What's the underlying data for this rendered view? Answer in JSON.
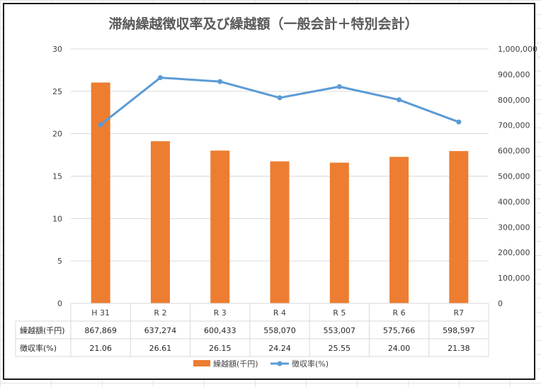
{
  "chart_data": {
    "type": "bar",
    "title": "滞納繰越徴収率及び繰越額（一般会計＋特別会計）",
    "categories": [
      "H 31",
      "R 2",
      "R 3",
      "R 4",
      "R 5",
      "R 6",
      "R7"
    ],
    "series": [
      {
        "name": "繰越額(千円)",
        "type": "bar",
        "axis": "right",
        "color": "#ED7D31",
        "values": [
          867869,
          637274,
          600433,
          558070,
          553007,
          575766,
          598597
        ],
        "labels": [
          "867,869",
          "637,274",
          "600,433",
          "558,070",
          "553,007",
          "575,766",
          "598,597"
        ]
      },
      {
        "name": "徴収率(%)",
        "type": "line",
        "axis": "left",
        "color": "#5B9BD5",
        "values": [
          21.06,
          26.61,
          26.15,
          24.24,
          25.55,
          24.0,
          21.38
        ],
        "labels": [
          "21.06",
          "26.61",
          "26.15",
          "24.24",
          "25.55",
          "24.00",
          "21.38"
        ]
      }
    ],
    "left_axis": {
      "ylim": [
        0,
        30
      ],
      "ticks": [
        0,
        5,
        10,
        15,
        20,
        25,
        30
      ],
      "tick_labels": [
        "0",
        "5",
        "10",
        "15",
        "20",
        "25",
        "30"
      ]
    },
    "right_axis": {
      "ylim": [
        0,
        1000000
      ],
      "ticks": [
        0,
        100000,
        200000,
        300000,
        400000,
        500000,
        600000,
        700000,
        800000,
        900000,
        1000000
      ],
      "tick_labels": [
        "0",
        "100,000",
        "200,000",
        "300,000",
        "400,000",
        "500,000",
        "600,000",
        "700,000",
        "800,000",
        "900,000",
        "1,000,000"
      ]
    },
    "grid": true,
    "legend": "bottom",
    "data_table": true
  }
}
